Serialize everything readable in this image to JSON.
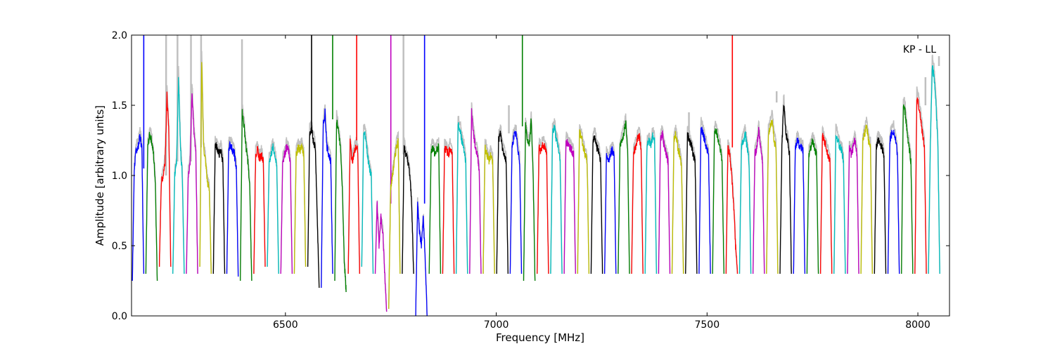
{
  "chart_data": {
    "type": "line",
    "title": "",
    "annotation": "KP - LL",
    "xlabel": "Frequency [MHz]",
    "ylabel": "Amplitude [arbitrary units]",
    "xlim": [
      6135,
      8075
    ],
    "ylim": [
      0.0,
      2.0
    ],
    "xticks": [
      6500,
      7000,
      7500,
      8000
    ],
    "xtick_labels": [
      "6500",
      "7000",
      "7500",
      "8000"
    ],
    "yticks": [
      0.0,
      0.5,
      1.0,
      1.5,
      2.0
    ],
    "ytick_labels": [
      "0.0",
      "0.5",
      "1.0",
      "1.5",
      "2.0"
    ],
    "grid": false,
    "legend": "none",
    "color_cycle": [
      "#0000ff",
      "#008000",
      "#ff0000",
      "#00bfbf",
      "#bf00bf",
      "#bfbf00",
      "#000000"
    ],
    "background_color": "#c0c0c0",
    "channel_width_mhz": 32,
    "channel_x_start": 6137,
    "channels": [
      {
        "start": 6137,
        "end": 6164,
        "shape": [
          0.25,
          1.05,
          1.18,
          1.2,
          1.28,
          1.2,
          0.3
        ],
        "spike": {
          "x": 6164,
          "y": 2.0
        }
      },
      {
        "start": 6169,
        "end": 6196,
        "shape": [
          0.3,
          1.2,
          1.29,
          1.25,
          1.15,
          0.95,
          0.25
        ]
      },
      {
        "start": 6201,
        "end": 6228,
        "shape": [
          0.35,
          0.95,
          1.0,
          1.1,
          1.57,
          1.3,
          0.35
        ],
        "spike": {
          "x": 6217,
          "y": 2.0,
          "bg": true
        }
      },
      {
        "start": 6233,
        "end": 6260,
        "shape": [
          0.3,
          1.0,
          1.1,
          1.7,
          1.2,
          1.0,
          0.3
        ],
        "spike": {
          "x": 6244,
          "y": 2.0,
          "bg": true
        }
      },
      {
        "start": 6265,
        "end": 6292,
        "shape": [
          0.3,
          1.0,
          1.1,
          1.6,
          1.3,
          1.15,
          0.3
        ],
        "spike": {
          "x": 6276,
          "y": 2.0,
          "bg": true
        }
      },
      {
        "start": 6297,
        "end": 6324,
        "shape": [
          0.35,
          1.8,
          1.2,
          1.1,
          0.95,
          0.9,
          0.3
        ],
        "spike": {
          "x": 6300,
          "y": 2.0,
          "bg": true
        }
      },
      {
        "start": 6329,
        "end": 6356,
        "shape": [
          0.3,
          1.22,
          1.2,
          1.15,
          1.18,
          1.1,
          0.3
        ]
      },
      {
        "start": 6361,
        "end": 6388,
        "shape": [
          0.3,
          1.2,
          1.22,
          1.18,
          1.15,
          1.05,
          0.28
        ]
      },
      {
        "start": 6393,
        "end": 6420,
        "shape": [
          0.25,
          1.45,
          1.35,
          1.2,
          1.1,
          0.9,
          0.25
        ],
        "spike": {
          "x": 6397,
          "y": 1.97,
          "bg": true
        }
      },
      {
        "start": 6425,
        "end": 6452,
        "shape": [
          0.3,
          1.15,
          1.18,
          1.12,
          1.15,
          1.1,
          0.35
        ]
      },
      {
        "start": 6457,
        "end": 6484,
        "shape": [
          0.35,
          1.1,
          1.15,
          1.2,
          1.15,
          1.05,
          0.3
        ]
      },
      {
        "start": 6489,
        "end": 6516,
        "shape": [
          0.3,
          1.1,
          1.15,
          1.2,
          1.18,
          1.1,
          0.3
        ]
      },
      {
        "start": 6521,
        "end": 6548,
        "shape": [
          0.3,
          1.15,
          1.2,
          1.18,
          1.2,
          1.15,
          0.35
        ]
      },
      {
        "start": 6553,
        "end": 6580,
        "shape": [
          0.35,
          1.3,
          1.32,
          1.25,
          1.2,
          0.7,
          0.2
        ],
        "spike": {
          "x": 6562,
          "y": 2.0
        }
      },
      {
        "start": 6585,
        "end": 6612,
        "shape": [
          0.2,
          1.35,
          1.45,
          1.2,
          1.15,
          1.1,
          0.3
        ]
      },
      {
        "start": 6617,
        "end": 6644,
        "shape": [
          0.25,
          1.4,
          1.3,
          1.2,
          0.9,
          0.4,
          0.17
        ],
        "spike": {
          "x": 6612,
          "y": 2.0
        }
      },
      {
        "start": 6649,
        "end": 6676,
        "shape": [
          0.3,
          1.25,
          1.1,
          1.15,
          1.2,
          1.18,
          0.3
        ],
        "spike": {
          "x": 6669,
          "y": 2.0
        }
      },
      {
        "start": 6681,
        "end": 6708,
        "shape": [
          0.35,
          1.3,
          1.28,
          1.15,
          1.05,
          1.0,
          0.3
        ]
      },
      {
        "start": 6713,
        "end": 6740,
        "shape": [
          0.3,
          0.8,
          0.5,
          0.7,
          0.6,
          0.3,
          0.03
        ],
        "spike": {
          "x": 6750,
          "y": 2.0
        }
      },
      {
        "start": 6745,
        "end": 6772,
        "shape": [
          0.05,
          0.9,
          1.0,
          1.1,
          1.2,
          1.25,
          0.3
        ]
      },
      {
        "start": 6777,
        "end": 6804,
        "shape": [
          0.3,
          1.2,
          1.15,
          1.1,
          1.0,
          0.8,
          0.3
        ],
        "spike": {
          "x": 6780,
          "y": 2.0,
          "bg": true
        }
      },
      {
        "start": 6809,
        "end": 6836,
        "shape": [
          0.0,
          0.8,
          0.6,
          0.5,
          0.7,
          0.4,
          0.0
        ],
        "spike": {
          "x": 6830,
          "y": 2.0
        }
      },
      {
        "start": 6841,
        "end": 6868,
        "shape": [
          0.3,
          1.18,
          1.2,
          1.15,
          1.18,
          1.2,
          0.3
        ]
      },
      {
        "start": 6873,
        "end": 6900,
        "shape": [
          0.3,
          1.2,
          1.18,
          1.15,
          1.2,
          1.15,
          0.3
        ]
      },
      {
        "start": 6905,
        "end": 6932,
        "shape": [
          0.3,
          1.36,
          1.32,
          1.25,
          1.2,
          1.1,
          0.3
        ]
      },
      {
        "start": 6937,
        "end": 6964,
        "shape": [
          0.3,
          1.45,
          1.3,
          1.2,
          1.15,
          1.05,
          0.3
        ]
      },
      {
        "start": 6969,
        "end": 6996,
        "shape": [
          0.3,
          1.2,
          1.15,
          1.1,
          1.15,
          1.1,
          0.3
        ]
      },
      {
        "start": 7001,
        "end": 7028,
        "shape": [
          0.3,
          1.25,
          1.3,
          1.2,
          1.15,
          1.1,
          0.3
        ],
        "spike": {
          "x": 7030,
          "y": 1.5,
          "bg": true
        }
      },
      {
        "start": 7033,
        "end": 7060,
        "shape": [
          0.3,
          1.2,
          1.28,
          1.3,
          1.2,
          1.1,
          0.3
        ]
      },
      {
        "start": 7065,
        "end": 7092,
        "shape": [
          0.25,
          1.35,
          1.25,
          1.2,
          1.4,
          1.0,
          0.25
        ],
        "spike": {
          "x": 7062,
          "y": 2.0
        }
      },
      {
        "start": 7097,
        "end": 7124,
        "shape": [
          0.3,
          1.2,
          1.18,
          1.22,
          1.2,
          1.15,
          0.3
        ]
      },
      {
        "start": 7129,
        "end": 7156,
        "shape": [
          0.3,
          1.3,
          1.35,
          1.25,
          1.2,
          1.1,
          0.3
        ]
      },
      {
        "start": 7161,
        "end": 7188,
        "shape": [
          0.3,
          1.25,
          1.22,
          1.2,
          1.18,
          1.15,
          0.3
        ]
      },
      {
        "start": 7193,
        "end": 7220,
        "shape": [
          0.3,
          1.3,
          1.28,
          1.2,
          1.15,
          1.1,
          0.3
        ]
      },
      {
        "start": 7225,
        "end": 7252,
        "shape": [
          0.3,
          1.25,
          1.28,
          1.2,
          1.18,
          1.1,
          0.3
        ]
      },
      {
        "start": 7257,
        "end": 7284,
        "shape": [
          0.3,
          1.15,
          1.1,
          1.15,
          1.18,
          1.15,
          0.3
        ]
      },
      {
        "start": 7289,
        "end": 7316,
        "shape": [
          0.3,
          1.2,
          1.25,
          1.3,
          1.37,
          1.2,
          0.3
        ]
      },
      {
        "start": 7321,
        "end": 7348,
        "shape": [
          0.3,
          1.15,
          1.2,
          1.25,
          1.28,
          1.2,
          0.3
        ]
      },
      {
        "start": 7353,
        "end": 7380,
        "shape": [
          0.3,
          1.2,
          1.25,
          1.2,
          1.28,
          1.25,
          0.3
        ]
      },
      {
        "start": 7385,
        "end": 7412,
        "shape": [
          0.3,
          1.25,
          1.3,
          1.2,
          1.15,
          1.1,
          0.3
        ]
      },
      {
        "start": 7417,
        "end": 7444,
        "shape": [
          0.3,
          1.25,
          1.3,
          1.2,
          1.15,
          1.05,
          0.3
        ]
      },
      {
        "start": 7449,
        "end": 7476,
        "shape": [
          0.3,
          1.3,
          1.25,
          1.22,
          1.15,
          1.1,
          0.3
        ],
        "spike": {
          "x": 7457,
          "y": 1.45,
          "bg": true
        }
      },
      {
        "start": 7481,
        "end": 7508,
        "shape": [
          0.3,
          1.35,
          1.3,
          1.25,
          1.2,
          1.15,
          0.3
        ]
      },
      {
        "start": 7513,
        "end": 7540,
        "shape": [
          0.3,
          1.3,
          1.32,
          1.25,
          1.2,
          1.1,
          0.3
        ]
      },
      {
        "start": 7545,
        "end": 7572,
        "shape": [
          0.3,
          1.2,
          1.15,
          1.0,
          0.8,
          0.5,
          0.3
        ],
        "spike": {
          "x": 7560,
          "y": 2.0
        }
      },
      {
        "start": 7577,
        "end": 7604,
        "shape": [
          0.3,
          1.2,
          1.25,
          1.3,
          1.2,
          1.1,
          0.3
        ]
      },
      {
        "start": 7609,
        "end": 7636,
        "shape": [
          0.3,
          1.15,
          1.2,
          1.32,
          1.2,
          1.1,
          0.3
        ]
      },
      {
        "start": 7641,
        "end": 7668,
        "shape": [
          0.3,
          1.3,
          1.35,
          1.4,
          1.25,
          1.2,
          0.3
        ]
      },
      {
        "start": 7673,
        "end": 7700,
        "shape": [
          0.3,
          1.2,
          1.52,
          1.3,
          1.25,
          1.15,
          0.3
        ],
        "spike": {
          "x": 7665,
          "y": 1.6,
          "bg": true
        }
      },
      {
        "start": 7705,
        "end": 7732,
        "shape": [
          0.3,
          1.2,
          1.25,
          1.22,
          1.2,
          1.18,
          0.3
        ]
      },
      {
        "start": 7737,
        "end": 7764,
        "shape": [
          0.3,
          1.15,
          1.2,
          1.25,
          1.2,
          1.15,
          0.3
        ]
      },
      {
        "start": 7769,
        "end": 7796,
        "shape": [
          0.3,
          1.28,
          1.25,
          1.2,
          1.15,
          1.1,
          0.3
        ]
      },
      {
        "start": 7801,
        "end": 7828,
        "shape": [
          0.3,
          1.3,
          1.25,
          1.2,
          1.18,
          1.1,
          0.3
        ]
      },
      {
        "start": 7833,
        "end": 7860,
        "shape": [
          0.3,
          1.2,
          1.15,
          1.2,
          1.25,
          1.15,
          0.3
        ]
      },
      {
        "start": 7865,
        "end": 7892,
        "shape": [
          0.3,
          1.25,
          1.3,
          1.35,
          1.25,
          1.2,
          0.3
        ]
      },
      {
        "start": 7897,
        "end": 7924,
        "shape": [
          0.3,
          1.2,
          1.25,
          1.22,
          1.2,
          1.15,
          0.3
        ]
      },
      {
        "start": 7929,
        "end": 7956,
        "shape": [
          0.3,
          1.25,
          1.3,
          1.32,
          1.25,
          1.15,
          0.3
        ]
      },
      {
        "start": 7961,
        "end": 7988,
        "shape": [
          0.3,
          1.5,
          1.45,
          1.3,
          1.2,
          1.1,
          0.3
        ]
      },
      {
        "start": 7993,
        "end": 8020,
        "shape": [
          0.3,
          1.55,
          1.5,
          1.4,
          1.3,
          1.2,
          0.3
        ],
        "spike": {
          "x": 8018,
          "y": 1.7,
          "bg": true
        }
      },
      {
        "start": 8025,
        "end": 8052,
        "shape": [
          0.3,
          1.2,
          1.78,
          1.7,
          1.5,
          1.2,
          0.3
        ],
        "spike": {
          "x": 8050,
          "y": 1.85,
          "bg": true
        }
      }
    ]
  }
}
